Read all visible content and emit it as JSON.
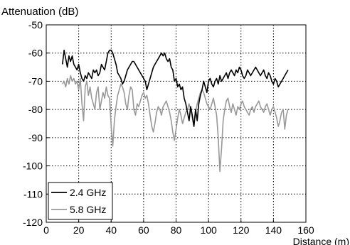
{
  "chart_data": {
    "type": "line",
    "title": "",
    "xlabel": "Distance (m)",
    "ylabel": "Attenuation (dB)",
    "xlim": [
      0,
      160
    ],
    "ylim": [
      -120,
      -50
    ],
    "x_ticks": [
      0,
      20,
      40,
      60,
      80,
      100,
      120,
      140,
      160
    ],
    "y_ticks": [
      -50,
      -60,
      -70,
      -80,
      -90,
      -100,
      -110,
      -120
    ],
    "grid": true,
    "legend_position": "bottom-left",
    "series": [
      {
        "name": "2.4 GHz",
        "color": "#000000",
        "points": [
          [
            10,
            -64
          ],
          [
            11,
            -59
          ],
          [
            12,
            -62
          ],
          [
            13,
            -65
          ],
          [
            14,
            -61
          ],
          [
            15,
            -63
          ],
          [
            16,
            -61
          ],
          [
            17,
            -64
          ],
          [
            18,
            -65
          ],
          [
            19,
            -66
          ],
          [
            20,
            -64
          ],
          [
            21,
            -67
          ],
          [
            22,
            -69
          ],
          [
            23,
            -70
          ],
          [
            24,
            -68
          ],
          [
            25,
            -69
          ],
          [
            26,
            -67
          ],
          [
            27,
            -68
          ],
          [
            28,
            -69
          ],
          [
            29,
            -66
          ],
          [
            30,
            -67
          ],
          [
            31,
            -66
          ],
          [
            32,
            -68
          ],
          [
            33,
            -67
          ],
          [
            34,
            -64
          ],
          [
            35,
            -65
          ],
          [
            36,
            -66
          ],
          [
            37,
            -63
          ],
          [
            38,
            -60
          ],
          [
            39,
            -59
          ],
          [
            40,
            -59
          ],
          [
            41,
            -60
          ],
          [
            42,
            -62
          ],
          [
            43,
            -64
          ],
          [
            44,
            -67
          ],
          [
            45,
            -68
          ],
          [
            46,
            -69
          ],
          [
            47,
            -71
          ],
          [
            48,
            -70
          ],
          [
            49,
            -68
          ],
          [
            50,
            -66
          ],
          [
            51,
            -65
          ],
          [
            52,
            -64
          ],
          [
            53,
            -63
          ],
          [
            54,
            -63
          ],
          [
            55,
            -64
          ],
          [
            56,
            -65
          ],
          [
            57,
            -66
          ],
          [
            58,
            -67
          ],
          [
            59,
            -68
          ],
          [
            60,
            -69
          ],
          [
            61,
            -70
          ],
          [
            62,
            -73
          ],
          [
            63,
            -71
          ],
          [
            64,
            -69
          ],
          [
            65,
            -67
          ],
          [
            66,
            -65
          ],
          [
            67,
            -64
          ],
          [
            68,
            -63
          ],
          [
            69,
            -62
          ],
          [
            70,
            -61
          ],
          [
            71,
            -60
          ],
          [
            72,
            -61
          ],
          [
            73,
            -60
          ],
          [
            74,
            -62
          ],
          [
            75,
            -63
          ],
          [
            76,
            -62
          ],
          [
            77,
            -65
          ],
          [
            78,
            -66
          ],
          [
            79,
            -70
          ],
          [
            80,
            -69
          ],
          [
            81,
            -72
          ],
          [
            82,
            -71
          ],
          [
            83,
            -73
          ],
          [
            84,
            -72
          ],
          [
            85,
            -76
          ],
          [
            86,
            -78
          ],
          [
            87,
            -81
          ],
          [
            88,
            -84
          ],
          [
            89,
            -79
          ],
          [
            90,
            -82
          ],
          [
            91,
            -86
          ],
          [
            92,
            -80
          ],
          [
            93,
            -84
          ],
          [
            94,
            -78
          ],
          [
            95,
            -75
          ],
          [
            96,
            -73
          ],
          [
            97,
            -70
          ],
          [
            98,
            -72
          ],
          [
            99,
            -74
          ],
          [
            100,
            -70
          ],
          [
            101,
            -69
          ],
          [
            102,
            -71
          ],
          [
            103,
            -72
          ],
          [
            104,
            -70
          ],
          [
            105,
            -69
          ],
          [
            106,
            -71
          ],
          [
            107,
            -68
          ],
          [
            108,
            -70
          ],
          [
            109,
            -69
          ],
          [
            110,
            -68
          ],
          [
            111,
            -67
          ],
          [
            112,
            -69
          ],
          [
            113,
            -67
          ],
          [
            114,
            -66
          ],
          [
            115,
            -67
          ],
          [
            116,
            -68
          ],
          [
            117,
            -66
          ],
          [
            118,
            -67
          ],
          [
            119,
            -65
          ],
          [
            120,
            -66
          ],
          [
            121,
            -68
          ],
          [
            122,
            -69
          ],
          [
            123,
            -68
          ],
          [
            124,
            -66
          ],
          [
            125,
            -67
          ],
          [
            126,
            -68
          ],
          [
            127,
            -67
          ],
          [
            128,
            -66
          ],
          [
            129,
            -65
          ],
          [
            130,
            -66
          ],
          [
            131,
            -67
          ],
          [
            132,
            -68
          ],
          [
            133,
            -67
          ],
          [
            134,
            -66
          ],
          [
            135,
            -68
          ],
          [
            136,
            -69
          ],
          [
            137,
            -67
          ],
          [
            138,
            -68
          ],
          [
            139,
            -70
          ],
          [
            140,
            -71
          ],
          [
            141,
            -69
          ],
          [
            142,
            -70
          ],
          [
            143,
            -72
          ],
          [
            144,
            -71
          ],
          [
            145,
            -70
          ],
          [
            146,
            -69
          ],
          [
            147,
            -68
          ],
          [
            148,
            -67
          ],
          [
            149,
            -66
          ]
        ]
      },
      {
        "name": "5.8 GHz",
        "color": "#999999",
        "points": [
          [
            10,
            -71
          ],
          [
            11,
            -70
          ],
          [
            12,
            -72
          ],
          [
            13,
            -69
          ],
          [
            14,
            -71
          ],
          [
            15,
            -68
          ],
          [
            16,
            -70
          ],
          [
            17,
            -69
          ],
          [
            18,
            -71
          ],
          [
            19,
            -70
          ],
          [
            20,
            -73
          ],
          [
            21,
            -69
          ],
          [
            22,
            -78
          ],
          [
            23,
            -84
          ],
          [
            24,
            -72
          ],
          [
            25,
            -70
          ],
          [
            26,
            -75
          ],
          [
            27,
            -72
          ],
          [
            28,
            -76
          ],
          [
            29,
            -78
          ],
          [
            30,
            -80
          ],
          [
            31,
            -74
          ],
          [
            32,
            -72
          ],
          [
            33,
            -80
          ],
          [
            34,
            -77
          ],
          [
            35,
            -74
          ],
          [
            36,
            -76
          ],
          [
            37,
            -72
          ],
          [
            38,
            -75
          ],
          [
            39,
            -76
          ],
          [
            40,
            -86
          ],
          [
            41,
            -93
          ],
          [
            42,
            -84
          ],
          [
            43,
            -79
          ],
          [
            44,
            -75
          ],
          [
            45,
            -73
          ],
          [
            46,
            -71
          ],
          [
            47,
            -72
          ],
          [
            48,
            -74
          ],
          [
            49,
            -78
          ],
          [
            50,
            -80
          ],
          [
            51,
            -75
          ],
          [
            52,
            -72
          ],
          [
            53,
            -73
          ],
          [
            54,
            -80
          ],
          [
            55,
            -82
          ],
          [
            56,
            -78
          ],
          [
            57,
            -79
          ],
          [
            58,
            -77
          ],
          [
            59,
            -75
          ],
          [
            60,
            -74
          ],
          [
            61,
            -76
          ],
          [
            62,
            -75
          ],
          [
            63,
            -78
          ],
          [
            64,
            -82
          ],
          [
            65,
            -86
          ],
          [
            66,
            -88
          ],
          [
            67,
            -85
          ],
          [
            68,
            -81
          ],
          [
            69,
            -79
          ],
          [
            70,
            -80
          ],
          [
            71,
            -82
          ],
          [
            72,
            -79
          ],
          [
            73,
            -78
          ],
          [
            74,
            -77
          ],
          [
            75,
            -79
          ],
          [
            76,
            -81
          ],
          [
            77,
            -84
          ],
          [
            78,
            -88
          ],
          [
            79,
            -91
          ],
          [
            80,
            -87
          ],
          [
            81,
            -83
          ],
          [
            82,
            -80
          ],
          [
            83,
            -82
          ],
          [
            84,
            -85
          ],
          [
            85,
            -83
          ],
          [
            86,
            -81
          ],
          [
            87,
            -80
          ],
          [
            88,
            -78
          ],
          [
            89,
            -80
          ],
          [
            90,
            -83
          ],
          [
            91,
            -86
          ],
          [
            92,
            -81
          ],
          [
            93,
            -78
          ],
          [
            94,
            -76
          ],
          [
            95,
            -74
          ],
          [
            96,
            -73
          ],
          [
            97,
            -74
          ],
          [
            98,
            -76
          ],
          [
            99,
            -78
          ],
          [
            100,
            -79
          ],
          [
            101,
            -80
          ],
          [
            102,
            -78
          ],
          [
            103,
            -76
          ],
          [
            104,
            -79
          ],
          [
            105,
            -82
          ],
          [
            106,
            -90
          ],
          [
            107,
            -102
          ],
          [
            108,
            -94
          ],
          [
            109,
            -84
          ],
          [
            110,
            -80
          ],
          [
            111,
            -77
          ],
          [
            112,
            -76
          ],
          [
            113,
            -79
          ],
          [
            114,
            -81
          ],
          [
            115,
            -78
          ],
          [
            116,
            -80
          ],
          [
            117,
            -82
          ],
          [
            118,
            -79
          ],
          [
            119,
            -80
          ],
          [
            120,
            -78
          ],
          [
            121,
            -77
          ],
          [
            122,
            -79
          ],
          [
            123,
            -80
          ],
          [
            124,
            -81
          ],
          [
            125,
            -82
          ],
          [
            126,
            -80
          ],
          [
            127,
            -79
          ],
          [
            128,
            -81
          ],
          [
            129,
            -79
          ],
          [
            130,
            -78
          ],
          [
            131,
            -77
          ],
          [
            132,
            -79
          ],
          [
            133,
            -80
          ],
          [
            134,
            -81
          ],
          [
            135,
            -79
          ],
          [
            136,
            -78
          ],
          [
            137,
            -80
          ],
          [
            138,
            -82
          ],
          [
            139,
            -80
          ],
          [
            140,
            -79
          ],
          [
            141,
            -81
          ],
          [
            142,
            -83
          ],
          [
            143,
            -86
          ],
          [
            144,
            -84
          ],
          [
            145,
            -81
          ],
          [
            146,
            -80
          ],
          [
            147,
            -87
          ],
          [
            148,
            -82
          ],
          [
            149,
            -80
          ]
        ]
      }
    ]
  }
}
